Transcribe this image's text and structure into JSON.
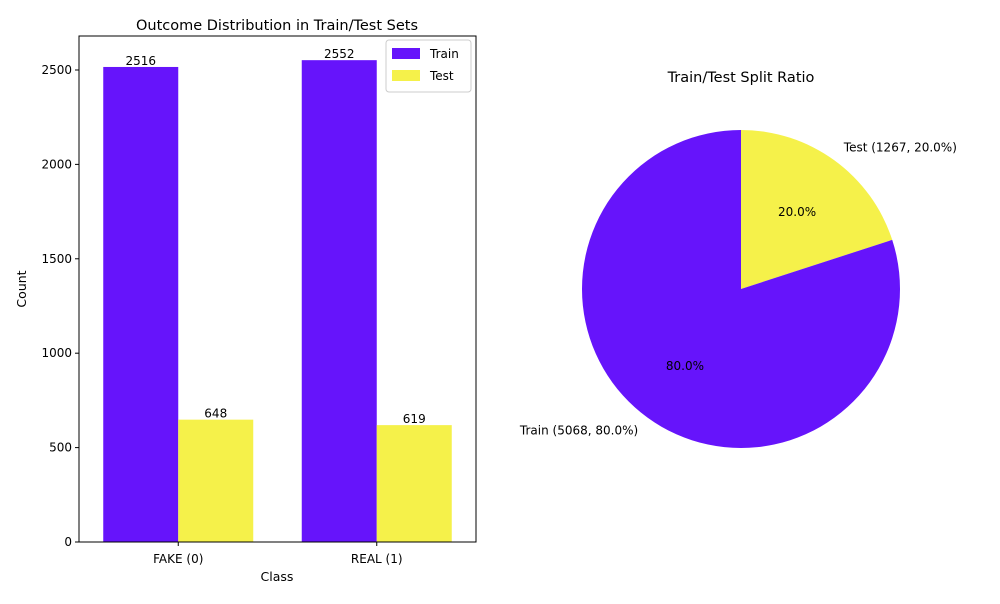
{
  "chart_data": [
    {
      "type": "bar",
      "title": "Outcome Distribution in Train/Test Sets",
      "xlabel": "Class",
      "ylabel": "Count",
      "categories": [
        "FAKE (0)",
        "REAL (1)"
      ],
      "series": [
        {
          "name": "Train",
          "values": [
            2516,
            2552
          ],
          "color": "#6614fb"
        },
        {
          "name": "Test",
          "values": [
            648,
            619
          ],
          "color": "#f5f14a"
        }
      ],
      "ylim": [
        0,
        2680
      ],
      "yticks": [
        "0",
        "500",
        "1000",
        "1500",
        "2000",
        "2500"
      ],
      "data_labels": [
        "2516",
        "2552",
        "648",
        "619"
      ],
      "legend": {
        "placement": "top-right",
        "entries": [
          "Train",
          "Test"
        ]
      },
      "grid": false
    },
    {
      "type": "pie",
      "title": "Train/Test Split Ratio",
      "slices": [
        {
          "label": "Train (5068, 80.0%)",
          "value": 5068,
          "pct_label": "80.0%",
          "color": "#6614fb"
        },
        {
          "label": "Test (1267, 20.0%)",
          "value": 1267,
          "pct_label": "20.0%",
          "color": "#f5f14a"
        }
      ]
    }
  ]
}
